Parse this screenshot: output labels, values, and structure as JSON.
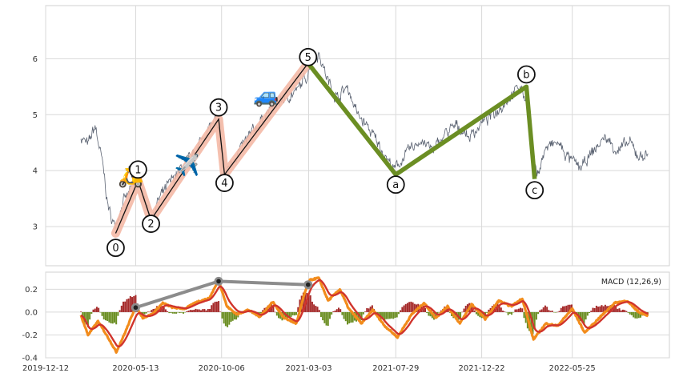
{
  "chart_data": [
    {
      "type": "line",
      "panel": "price",
      "title": "",
      "xlabel": "",
      "ylabel": "",
      "x_tick_labels": [
        "2019-12-12",
        "2020-05-13",
        "2020-10-06",
        "2021-03-03",
        "2021-07-29",
        "2021-12-22",
        "2022-05-25"
      ],
      "x_tick_dates": [
        "2019-12-12",
        "2020-05-13",
        "2020-10-06",
        "2021-03-03",
        "2021-07-29",
        "2021-12-22",
        "2022-05-25"
      ],
      "xlim": [
        "2019-12-12",
        "2022-11-06"
      ],
      "ylim": [
        2.3,
        6.95
      ],
      "y_ticks": [
        3,
        4,
        5,
        6
      ],
      "grid": true,
      "colors": {
        "price": "#5b6372",
        "impulse_band": "#f4b9a6",
        "impulse_line": "#111111",
        "corrective": "#6b8e23",
        "grid": "#d9d9d9",
        "frame": "#d0d0d0"
      },
      "price_series": {
        "name": "",
        "anchors": [
          [
            "2020-02-10",
            4.6
          ],
          [
            "2020-02-22",
            4.45
          ],
          [
            "2020-03-05",
            4.8
          ],
          [
            "2020-03-18",
            4.1
          ],
          [
            "2020-03-28",
            3.3
          ],
          [
            "2020-04-08",
            3.0
          ],
          [
            "2020-04-20",
            3.4
          ],
          [
            "2020-05-02",
            3.6
          ],
          [
            "2020-05-15",
            3.85
          ],
          [
            "2020-05-28",
            3.55
          ],
          [
            "2020-06-07",
            3.1
          ],
          [
            "2020-06-20",
            3.45
          ],
          [
            "2020-07-05",
            3.7
          ],
          [
            "2020-07-22",
            3.95
          ],
          [
            "2020-08-10",
            4.15
          ],
          [
            "2020-08-25",
            4.4
          ],
          [
            "2020-09-10",
            4.7
          ],
          [
            "2020-09-25",
            4.9
          ],
          [
            "2020-10-05",
            4.4
          ],
          [
            "2020-10-11",
            3.9
          ],
          [
            "2020-10-25",
            4.2
          ],
          [
            "2020-11-15",
            4.5
          ],
          [
            "2020-12-05",
            4.8
          ],
          [
            "2020-12-28",
            5.1
          ],
          [
            "2021-01-20",
            5.3
          ],
          [
            "2021-02-10",
            5.4
          ],
          [
            "2021-02-28",
            5.7
          ],
          [
            "2021-03-06",
            5.95
          ],
          [
            "2021-03-20",
            6.1
          ],
          [
            "2021-04-05",
            5.6
          ],
          [
            "2021-04-20",
            5.3
          ],
          [
            "2021-05-08",
            5.5
          ],
          [
            "2021-05-25",
            5.0
          ],
          [
            "2021-06-10",
            4.8
          ],
          [
            "2021-06-28",
            4.5
          ],
          [
            "2021-07-15",
            4.2
          ],
          [
            "2021-07-26",
            4.0
          ],
          [
            "2021-08-05",
            4.15
          ],
          [
            "2021-08-20",
            4.35
          ],
          [
            "2021-09-10",
            4.55
          ],
          [
            "2021-10-01",
            4.35
          ],
          [
            "2021-10-20",
            4.65
          ],
          [
            "2021-11-10",
            4.8
          ],
          [
            "2021-12-01",
            4.6
          ],
          [
            "2021-12-22",
            4.85
          ],
          [
            "2022-01-15",
            5.05
          ],
          [
            "2022-02-05",
            5.3
          ],
          [
            "2022-02-25",
            5.5
          ],
          [
            "2022-03-10",
            5.2
          ],
          [
            "2022-03-18",
            4.5
          ],
          [
            "2022-03-25",
            3.9
          ],
          [
            "2022-04-10",
            4.4
          ],
          [
            "2022-04-30",
            4.5
          ],
          [
            "2022-05-20",
            4.2
          ],
          [
            "2022-06-10",
            4.05
          ],
          [
            "2022-06-30",
            4.35
          ],
          [
            "2022-07-20",
            4.6
          ],
          [
            "2022-08-10",
            4.35
          ],
          [
            "2022-08-30",
            4.5
          ],
          [
            "2022-09-15",
            4.25
          ],
          [
            "2022-10-01",
            4.3
          ]
        ],
        "noise": 0.09
      },
      "waves": {
        "impulse": [
          {
            "label": "0",
            "date": "2020-04-09",
            "value": 2.88,
            "label_value": 2.62
          },
          {
            "label": "1",
            "date": "2020-05-17",
            "value": 3.82,
            "label_value": 4.02
          },
          {
            "label": "2",
            "date": "2020-06-08",
            "value": 3.12,
            "label_value": 3.05
          },
          {
            "label": "3",
            "date": "2020-10-01",
            "value": 4.92,
            "label_value": 5.13
          },
          {
            "label": "4",
            "date": "2020-10-11",
            "value": 3.93,
            "label_value": 3.78
          },
          {
            "label": "5",
            "date": "2021-03-02",
            "value": 5.92,
            "label_value": 6.03
          }
        ],
        "corrective": [
          {
            "label": "a",
            "date": "2021-07-29",
            "value": 3.93,
            "label_value": 3.75
          },
          {
            "label": "b",
            "date": "2022-03-08",
            "value": 5.5,
            "label_value": 5.72
          },
          {
            "label": "c",
            "date": "2022-03-22",
            "value": 3.85,
            "label_value": 3.65
          }
        ]
      },
      "icons": [
        {
          "name": "scooter-icon",
          "glyph": "🛵",
          "date": "2020-05-05",
          "value": 3.9
        },
        {
          "name": "airplane-icon",
          "glyph": "✈️",
          "date": "2020-08-09",
          "value": 4.1
        },
        {
          "name": "car-icon",
          "glyph": "🚙",
          "date": "2020-12-21",
          "value": 5.35
        }
      ]
    },
    {
      "type": "bar",
      "panel": "macd",
      "legend": "MACD (12,26,9)",
      "legend_placement": "top-right",
      "ylim": [
        -0.4,
        0.35
      ],
      "y_ticks": [
        -0.4,
        -0.2,
        0.0,
        0.2
      ],
      "y_tick_labels": [
        "-0.4",
        "-0.2",
        "0.0",
        "0.2"
      ],
      "grid": true,
      "colors": {
        "macd": "#f28c1c",
        "signal": "#d0342c",
        "hist_pos": "#a52a2a",
        "hist_neg": "#6b8e23",
        "divergence": "#8c8c8c",
        "divergence_marker": "#222222"
      },
      "macd_series": {
        "name": "",
        "anchors": [
          [
            "2020-02-10",
            -0.03
          ],
          [
            "2020-02-22",
            -0.2
          ],
          [
            "2020-03-10",
            -0.08
          ],
          [
            "2020-03-28",
            -0.23
          ],
          [
            "2020-04-10",
            -0.35
          ],
          [
            "2020-04-25",
            -0.18
          ],
          [
            "2020-05-13",
            0.05
          ],
          [
            "2020-05-25",
            -0.05
          ],
          [
            "2020-06-10",
            -0.02
          ],
          [
            "2020-06-28",
            0.08
          ],
          [
            "2020-07-15",
            0.04
          ],
          [
            "2020-08-05",
            0.03
          ],
          [
            "2020-08-25",
            0.09
          ],
          [
            "2020-09-15",
            0.12
          ],
          [
            "2020-10-01",
            0.28
          ],
          [
            "2020-10-15",
            0.05
          ],
          [
            "2020-11-01",
            -0.02
          ],
          [
            "2020-11-20",
            0.02
          ],
          [
            "2020-12-10",
            -0.04
          ],
          [
            "2021-01-01",
            0.09
          ],
          [
            "2021-01-20",
            -0.05
          ],
          [
            "2021-02-10",
            -0.1
          ],
          [
            "2021-02-25",
            0.18
          ],
          [
            "2021-03-05",
            0.28
          ],
          [
            "2021-03-20",
            0.3
          ],
          [
            "2021-04-05",
            0.1
          ],
          [
            "2021-04-25",
            0.2
          ],
          [
            "2021-05-10",
            0.03
          ],
          [
            "2021-06-01",
            -0.1
          ],
          [
            "2021-06-20",
            0.02
          ],
          [
            "2021-07-10",
            -0.12
          ],
          [
            "2021-08-01",
            -0.22
          ],
          [
            "2021-08-25",
            -0.02
          ],
          [
            "2021-09-15",
            0.08
          ],
          [
            "2021-10-05",
            -0.05
          ],
          [
            "2021-10-25",
            0.05
          ],
          [
            "2021-11-15",
            -0.1
          ],
          [
            "2021-12-05",
            0.07
          ],
          [
            "2021-12-28",
            -0.06
          ],
          [
            "2022-01-20",
            0.1
          ],
          [
            "2022-02-10",
            0.05
          ],
          [
            "2022-03-01",
            0.12
          ],
          [
            "2022-03-20",
            -0.24
          ],
          [
            "2022-04-10",
            -0.1
          ],
          [
            "2022-04-30",
            -0.12
          ],
          [
            "2022-05-25",
            0.03
          ],
          [
            "2022-06-15",
            -0.18
          ],
          [
            "2022-07-10",
            -0.05
          ],
          [
            "2022-08-05",
            0.08
          ],
          [
            "2022-08-25",
            0.1
          ],
          [
            "2022-09-15",
            0.0
          ],
          [
            "2022-10-01",
            -0.03
          ]
        ]
      },
      "divergence": [
        {
          "date": "2020-05-13",
          "value": 0.04
        },
        {
          "date": "2020-10-01",
          "value": 0.27
        },
        {
          "date": "2021-03-02",
          "value": 0.24
        }
      ]
    }
  ]
}
